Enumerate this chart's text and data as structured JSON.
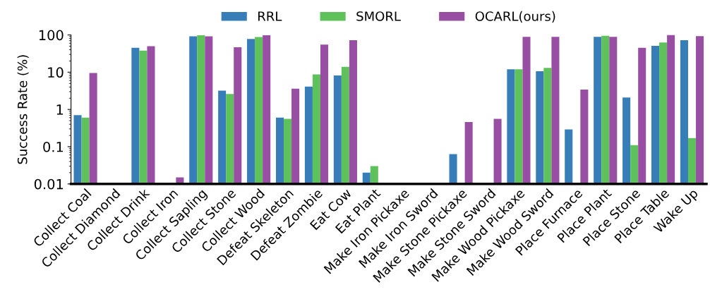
{
  "chart_data": {
    "type": "bar",
    "ylabel": "Success Rate (%)",
    "log": "y",
    "ylim": [
      0.01,
      100
    ],
    "yticks": [
      0.01,
      0.1,
      1,
      10,
      100
    ],
    "grid": false,
    "legend": "top",
    "categories": [
      "Collect Coal",
      "Collect Diamond",
      "Collect Drink",
      "Collect Iron",
      "Collect Sapling",
      "Collect Stone",
      "Collect Wood",
      "Defeat Skeleton",
      "Defeat Zombie",
      "Eat Cow",
      "Eat Plant",
      "Make Iron Pickaxe",
      "Make Iron Sword",
      "Make Stone Pickaxe",
      "Make Stone Sword",
      "Make Wood Pickaxe",
      "Make Wood Sword",
      "Place Furnace",
      "Place Plant",
      "Place Stone",
      "Place Table",
      "Wake Up"
    ],
    "series": [
      {
        "name": "RRL",
        "color": "#377eb8",
        "values": [
          0.7,
          null,
          45,
          null,
          92,
          3.2,
          78,
          0.6,
          4.1,
          8.2,
          0.02,
          null,
          null,
          0.063,
          null,
          12,
          10.6,
          0.29,
          89,
          2.1,
          51,
          72
        ]
      },
      {
        "name": "SMORL",
        "color": "#5fc15b",
        "values": [
          0.6,
          null,
          38,
          null,
          98,
          2.6,
          88,
          0.56,
          8.7,
          14,
          0.03,
          null,
          null,
          null,
          null,
          12,
          13,
          null,
          95,
          0.11,
          63,
          0.17
        ]
      },
      {
        "name": "OCARL(ours)",
        "color": "#984ea3",
        "values": [
          9.5,
          null,
          50,
          0.015,
          92,
          47,
          98,
          3.6,
          55,
          72,
          null,
          null,
          null,
          0.46,
          0.56,
          89,
          89,
          3.4,
          89,
          45,
          100,
          93
        ]
      }
    ]
  }
}
